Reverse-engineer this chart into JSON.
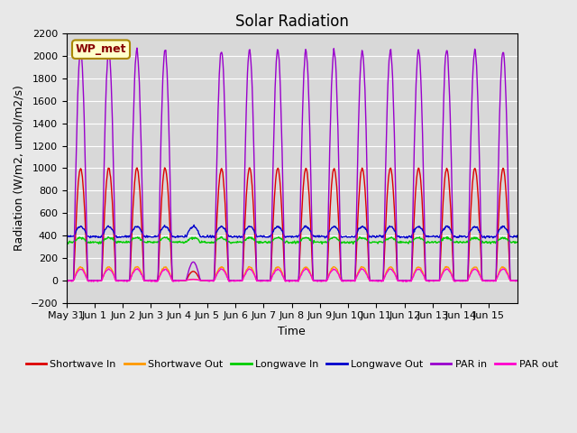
{
  "title": "Solar Radiation",
  "ylabel": "Radiation (W/m2, umol/m2/s)",
  "xlabel": "Time",
  "ylim": [
    -200,
    2200
  ],
  "yticks": [
    -200,
    0,
    200,
    400,
    600,
    800,
    1000,
    1200,
    1400,
    1600,
    1800,
    2000,
    2200
  ],
  "background_color": "#e8e8e8",
  "plot_bg_color": "#d8d8d8",
  "station_label": "WP_met",
  "colors": {
    "shortwave_in": "#dd0000",
    "shortwave_out": "#ff9900",
    "longwave_in": "#00cc00",
    "longwave_out": "#0000cc",
    "par_in": "#9900cc",
    "par_out": "#ff00cc"
  },
  "n_days": 16,
  "tick_positions": [
    0,
    1,
    2,
    3,
    4,
    5,
    6,
    7,
    8,
    9,
    10,
    11,
    12,
    13,
    14,
    15
  ],
  "tick_labels": [
    "May 31",
    "Jun 1",
    "Jun 2",
    "Jun 3",
    "Jun 4",
    "Jun 5",
    "Jun 6",
    "Jun 7",
    "Jun 8",
    "Jun 9",
    "Jun 10",
    "Jun 11",
    "Jun 12",
    "Jun 13",
    "Jun 14",
    "Jun 15"
  ],
  "legend_labels": [
    "Shortwave In",
    "Shortwave Out",
    "Longwave In",
    "Longwave Out",
    "PAR in",
    "PAR out"
  ]
}
